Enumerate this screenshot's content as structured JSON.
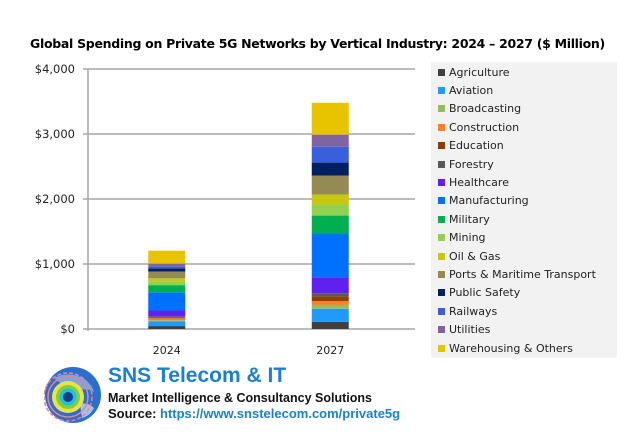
{
  "chart_data": {
    "type": "bar",
    "stacked": true,
    "title": "Global Spending on Private 5G Networks by Vertical Industry: 2024 – 2027 ($ Million)",
    "xlabel": "",
    "ylabel": "",
    "categories": [
      "2024",
      "2027"
    ],
    "ylim": [
      0,
      4000
    ],
    "yticks": [
      0,
      1000,
      2000,
      3000,
      4000
    ],
    "ytick_labels": [
      "$0",
      "$1,000",
      "$2,000",
      "$3,000",
      "$4,000"
    ],
    "grid": true,
    "legend_position": "right",
    "series": [
      {
        "name": "Agriculture",
        "color": "#404040",
        "values": [
          45,
          110
        ]
      },
      {
        "name": "Aviation",
        "color": "#1f9bff",
        "values": [
          75,
          200
        ]
      },
      {
        "name": "Broadcasting",
        "color": "#9bbb59",
        "values": [
          15,
          60
        ]
      },
      {
        "name": "Construction",
        "color": "#ff7f27",
        "values": [
          30,
          60
        ]
      },
      {
        "name": "Education",
        "color": "#8b4000",
        "values": [
          15,
          75
        ]
      },
      {
        "name": "Forestry",
        "color": "#595959",
        "values": [
          15,
          45
        ]
      },
      {
        "name": "Healthcare",
        "color": "#6020f0",
        "values": [
          90,
          245
        ]
      },
      {
        "name": "Manufacturing",
        "color": "#0070ff",
        "values": [
          280,
          675
        ]
      },
      {
        "name": "Military",
        "color": "#00b050",
        "values": [
          110,
          275
        ]
      },
      {
        "name": "Mining",
        "color": "#92d050",
        "values": [
          60,
          170
        ]
      },
      {
        "name": "Oil & Gas",
        "color": "#c8c810",
        "values": [
          45,
          155
        ]
      },
      {
        "name": "Ports & Maritime Transport",
        "color": "#948a54",
        "values": [
          105,
          290
        ]
      },
      {
        "name": "Public Safety",
        "color": "#002060",
        "values": [
          45,
          200
        ]
      },
      {
        "name": "Railways",
        "color": "#3a5fdc",
        "values": [
          30,
          245
        ]
      },
      {
        "name": "Utilities",
        "color": "#8064a2",
        "values": [
          45,
          185
        ]
      },
      {
        "name": "Warehousing & Others",
        "color": "#e8c400",
        "values": [
          200,
          490
        ]
      }
    ]
  },
  "footer": {
    "brand_name": "SNS Telecom & IT",
    "tagline": "Market Intelligence & Consultancy Solutions",
    "source_label": "Source: ",
    "source_url": "https://www.snstelecom.com/private5g"
  },
  "colors": {
    "brand": "#1a7fd4",
    "legend_bg": "#f2f2f2",
    "grid": "#a6a6a6"
  }
}
